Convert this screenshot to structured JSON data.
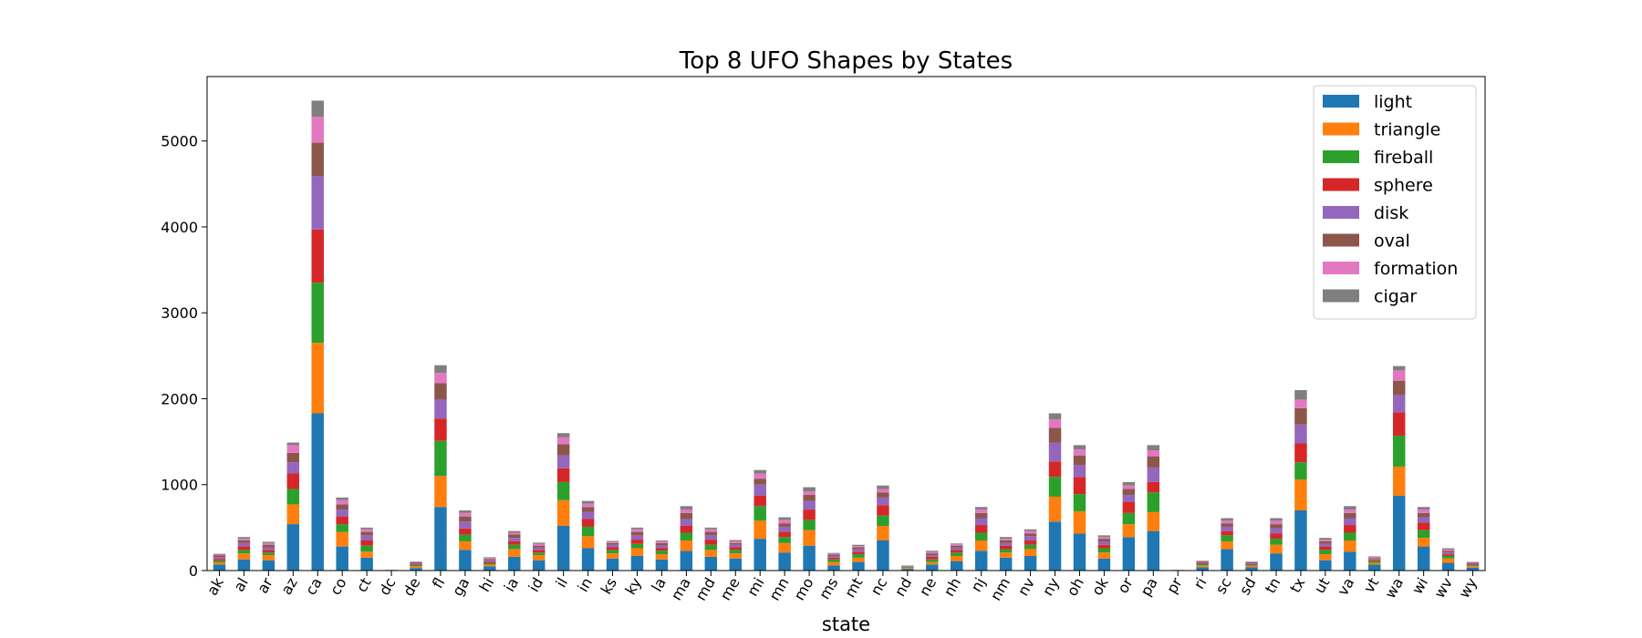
{
  "chart_data": {
    "type": "bar",
    "stacked": true,
    "title": "Top 8 UFO Shapes by States",
    "xlabel": "state",
    "ylabel": "",
    "ylim": [
      0,
      5750
    ],
    "yticks": [
      0,
      1000,
      2000,
      3000,
      4000,
      5000
    ],
    "grid": false,
    "legend_position": "top-right",
    "categories": [
      "ak",
      "al",
      "ar",
      "az",
      "ca",
      "co",
      "ct",
      "dc",
      "de",
      "fl",
      "ga",
      "hi",
      "ia",
      "id",
      "il",
      "in",
      "ks",
      "ky",
      "la",
      "ma",
      "md",
      "me",
      "mi",
      "mn",
      "mo",
      "ms",
      "mt",
      "nc",
      "nd",
      "ne",
      "nh",
      "nj",
      "nm",
      "nv",
      "ny",
      "oh",
      "ok",
      "or",
      "pa",
      "pr",
      "ri",
      "sc",
      "sd",
      "tn",
      "tx",
      "ut",
      "va",
      "vt",
      "wa",
      "wi",
      "wv",
      "wy"
    ],
    "series": [
      {
        "name": "light",
        "color": "#1f77b4",
        "values": [
          70,
          130,
          120,
          540,
          1830,
          280,
          150,
          4,
          30,
          740,
          240,
          50,
          160,
          120,
          520,
          260,
          140,
          170,
          130,
          230,
          160,
          140,
          370,
          210,
          290,
          60,
          100,
          350,
          20,
          70,
          110,
          230,
          150,
          170,
          570,
          430,
          140,
          390,
          460,
          2,
          40,
          250,
          40,
          200,
          700,
          120,
          220,
          70,
          870,
          280,
          90,
          35
        ]
      },
      {
        "name": "triangle",
        "color": "#ff7f0e",
        "values": [
          25,
          70,
          60,
          230,
          820,
          170,
          70,
          2,
          20,
          360,
          100,
          20,
          90,
          60,
          300,
          140,
          60,
          90,
          60,
          120,
          80,
          60,
          210,
          110,
          180,
          40,
          50,
          170,
          10,
          30,
          60,
          120,
          60,
          80,
          290,
          260,
          70,
          150,
          220,
          1,
          20,
          90,
          15,
          100,
          360,
          70,
          130,
          20,
          340,
          100,
          50,
          15
        ]
      },
      {
        "name": "fireball",
        "color": "#2ca02c",
        "values": [
          20,
          40,
          30,
          180,
          700,
          90,
          70,
          1,
          15,
          410,
          80,
          15,
          50,
          30,
          210,
          110,
          40,
          50,
          40,
          90,
          60,
          40,
          170,
          70,
          120,
          30,
          40,
          120,
          10,
          30,
          40,
          90,
          40,
          50,
          230,
          200,
          50,
          130,
          230,
          1,
          15,
          70,
          10,
          70,
          200,
          50,
          90,
          20,
          360,
          90,
          30,
          10
        ]
      },
      {
        "name": "sphere",
        "color": "#d62728",
        "values": [
          20,
          40,
          30,
          180,
          620,
          90,
          60,
          1,
          10,
          260,
          70,
          15,
          40,
          30,
          160,
          90,
          30,
          50,
          30,
          80,
          60,
          30,
          120,
          60,
          120,
          20,
          30,
          120,
          5,
          30,
          30,
          90,
          40,
          50,
          180,
          200,
          40,
          130,
          120,
          1,
          10,
          50,
          10,
          60,
          220,
          40,
          90,
          15,
          270,
          90,
          20,
          10
        ]
      },
      {
        "name": "disk",
        "color": "#9467bd",
        "values": [
          20,
          40,
          30,
          130,
          620,
          80,
          60,
          1,
          10,
          220,
          80,
          20,
          40,
          30,
          150,
          80,
          30,
          50,
          30,
          80,
          50,
          30,
          130,
          60,
          100,
          20,
          30,
          90,
          5,
          20,
          30,
          80,
          30,
          50,
          220,
          140,
          40,
          80,
          170,
          1,
          10,
          50,
          10,
          60,
          220,
          30,
          80,
          10,
          200,
          60,
          20,
          10
        ]
      },
      {
        "name": "oval",
        "color": "#8c564b",
        "values": [
          20,
          30,
          30,
          110,
          390,
          60,
          40,
          0,
          10,
          190,
          60,
          15,
          40,
          20,
          130,
          60,
          20,
          40,
          30,
          70,
          40,
          20,
          70,
          40,
          70,
          15,
          20,
          60,
          5,
          20,
          20,
          60,
          30,
          30,
          170,
          110,
          30,
          70,
          130,
          1,
          10,
          40,
          10,
          50,
          190,
          30,
          60,
          10,
          170,
          50,
          20,
          10
        ]
      },
      {
        "name": "formation",
        "color": "#e377c2",
        "values": [
          10,
          20,
          20,
          90,
          300,
          50,
          30,
          0,
          5,
          120,
          40,
          10,
          20,
          20,
          80,
          40,
          15,
          30,
          20,
          40,
          30,
          20,
          60,
          40,
          40,
          10,
          15,
          40,
          3,
          15,
          15,
          40,
          20,
          30,
          100,
          70,
          20,
          40,
          70,
          0,
          5,
          30,
          5,
          40,
          100,
          20,
          40,
          10,
          120,
          40,
          15,
          5
        ]
      },
      {
        "name": "cigar",
        "color": "#7f7f7f",
        "values": [
          10,
          20,
          15,
          30,
          190,
          30,
          20,
          0,
          5,
          90,
          30,
          10,
          20,
          15,
          50,
          30,
          10,
          20,
          10,
          40,
          20,
          15,
          40,
          30,
          50,
          10,
          15,
          40,
          2,
          15,
          10,
          30,
          20,
          20,
          70,
          50,
          20,
          40,
          60,
          0,
          5,
          30,
          5,
          30,
          110,
          20,
          40,
          10,
          50,
          30,
          15,
          5
        ]
      }
    ]
  }
}
